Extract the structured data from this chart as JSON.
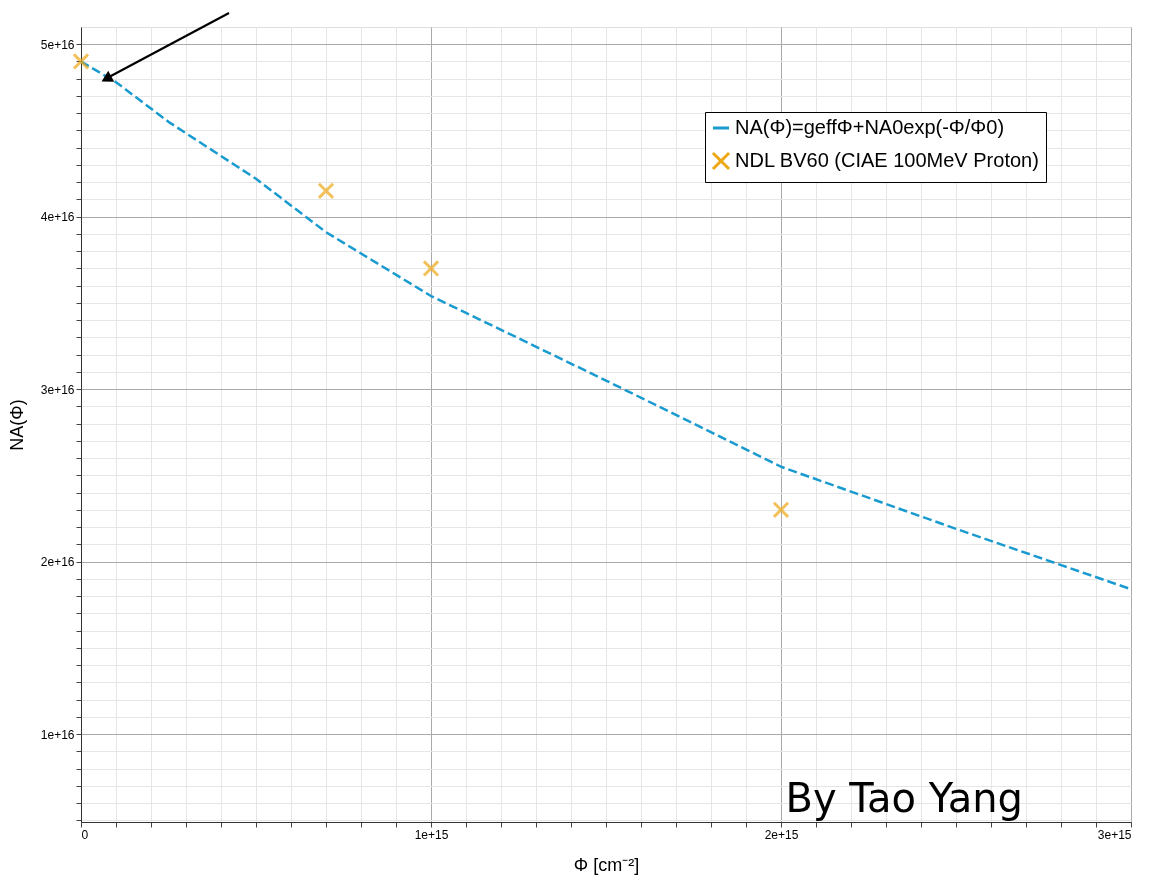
{
  "chart_data": {
    "type": "line",
    "xlabel": "Φ [cm⁻²]",
    "ylabel": "NA(Φ)",
    "xlim": [
      0,
      3000000000000000.0
    ],
    "ylim": [
      4900000000000000.0,
      5.1e+16
    ],
    "xticks": [
      0,
      {
        "value": 100000000000000.0,
        "label": null
      },
      {
        "value": 200000000000000.0,
        "label": null
      },
      {
        "value": 300000000000000.0,
        "label": null
      },
      {
        "value": 400000000000000.0,
        "label": null
      },
      {
        "value": 500000000000000.0,
        "label": null
      },
      {
        "value": 600000000000000.0,
        "label": null
      },
      {
        "value": 700000000000000.0,
        "label": null
      },
      {
        "value": 800000000000000.0,
        "label": null
      },
      {
        "value": 900000000000000.0,
        "label": null
      },
      {
        "value": 1000000000000000.0,
        "label": "1e+15"
      },
      {
        "value": 1100000000000000.0,
        "label": null
      },
      {
        "value": 1200000000000000.0,
        "label": null
      },
      {
        "value": 1300000000000000.0,
        "label": null
      },
      {
        "value": 1400000000000000.0,
        "label": null
      },
      {
        "value": 1500000000000000.0,
        "label": null
      },
      {
        "value": 1600000000000000.0,
        "label": null
      },
      {
        "value": 1700000000000000.0,
        "label": null
      },
      {
        "value": 1800000000000000.0,
        "label": null
      },
      {
        "value": 1900000000000000.0,
        "label": null
      },
      {
        "value": 2000000000000000.0,
        "label": "2e+15"
      },
      {
        "value": 2100000000000000.0,
        "label": null
      },
      {
        "value": 2200000000000000.0,
        "label": null
      },
      {
        "value": 2300000000000000.0,
        "label": null
      },
      {
        "value": 2400000000000000.0,
        "label": null
      },
      {
        "value": 2500000000000000.0,
        "label": null
      },
      {
        "value": 2600000000000000.0,
        "label": null
      },
      {
        "value": 2700000000000000.0,
        "label": null
      },
      {
        "value": 2800000000000000.0,
        "label": null
      },
      {
        "value": 2900000000000000.0,
        "label": null
      },
      {
        "value": 3000000000000000.0,
        "label": "3e+15"
      }
    ],
    "yticks": [
      {
        "value": 5000000000000000.0,
        "label": null
      },
      {
        "value": 6000000000000000.0,
        "label": null
      },
      {
        "value": 7000000000000000.0,
        "label": null
      },
      {
        "value": 8000000000000000.0,
        "label": null
      },
      {
        "value": 9000000000000000.0,
        "label": null
      },
      {
        "value": 1e+16,
        "label": "1e+16"
      },
      {
        "value": 1.1e+16,
        "label": null
      },
      {
        "value": 1.2e+16,
        "label": null
      },
      {
        "value": 1.3e+16,
        "label": null
      },
      {
        "value": 1.4e+16,
        "label": null
      },
      {
        "value": 1.5e+16,
        "label": null
      },
      {
        "value": 1.6e+16,
        "label": null
      },
      {
        "value": 1.7e+16,
        "label": null
      },
      {
        "value": 1.8e+16,
        "label": null
      },
      {
        "value": 1.9e+16,
        "label": null
      },
      {
        "value": 2e+16,
        "label": "2e+16"
      },
      {
        "value": 2.1e+16,
        "label": null
      },
      {
        "value": 2.2e+16,
        "label": null
      },
      {
        "value": 2.3e+16,
        "label": null
      },
      {
        "value": 2.4e+16,
        "label": null
      },
      {
        "value": 2.5e+16,
        "label": null
      },
      {
        "value": 2.6e+16,
        "label": null
      },
      {
        "value": 2.7e+16,
        "label": null
      },
      {
        "value": 2.8e+16,
        "label": null
      },
      {
        "value": 2.9e+16,
        "label": null
      },
      {
        "value": 3e+16,
        "label": "3e+16"
      },
      {
        "value": 3.1e+16,
        "label": null
      },
      {
        "value": 3.2e+16,
        "label": null
      },
      {
        "value": 3.3e+16,
        "label": null
      },
      {
        "value": 3.4e+16,
        "label": null
      },
      {
        "value": 3.5e+16,
        "label": null
      },
      {
        "value": 3.6e+16,
        "label": null
      },
      {
        "value": 3.7e+16,
        "label": null
      },
      {
        "value": 3.8e+16,
        "label": null
      },
      {
        "value": 3.9e+16,
        "label": null
      },
      {
        "value": 4e+16,
        "label": "4e+16"
      },
      {
        "value": 4.1e+16,
        "label": null
      },
      {
        "value": 4.2e+16,
        "label": null
      },
      {
        "value": 4.3e+16,
        "label": null
      },
      {
        "value": 4.4e+16,
        "label": null
      },
      {
        "value": 4.5e+16,
        "label": null
      },
      {
        "value": 4.6e+16,
        "label": null
      },
      {
        "value": 4.7e+16,
        "label": null
      },
      {
        "value": 4.8e+16,
        "label": null
      },
      {
        "value": 4.9e+16,
        "label": null
      },
      {
        "value": 5e+16,
        "label": "5e+16"
      }
    ],
    "grid": true,
    "legend": "top right",
    "series": [
      {
        "name": "NA(Φ)=geffΦ+NA0exp(-Φ/Φ0)",
        "marker": "none",
        "line_style": "dashed",
        "color": "#1a9bd0",
        "x": [
          0,
          100000000000000.0,
          250000000000000.0,
          500000000000000.0,
          700000000000000.0,
          1000000000000000.0,
          1500000000000000.0,
          2000000000000000.0,
          2500000000000000.0,
          3000000000000000.0
        ],
        "values": [
          4.9e+16,
          4.78e+16,
          4.55e+16,
          4.22e+16,
          3.91e+16,
          3.54e+16,
          3.05e+16,
          2.55e+16,
          2.19e+16,
          1.84e+16
        ]
      },
      {
        "name": "NDL BV60 (CIAE 100MeV Proton)",
        "type": "scatter",
        "marker": "cross",
        "color": "#eda816",
        "x": [
          0,
          700000000000000.0,
          1000000000000000.0,
          2000000000000000.0
        ],
        "values": [
          4.9e+16,
          4.15e+16,
          3.7e+16,
          2.3e+16
        ]
      }
    ],
    "annotations": [
      "By Tao Yang"
    ]
  }
}
